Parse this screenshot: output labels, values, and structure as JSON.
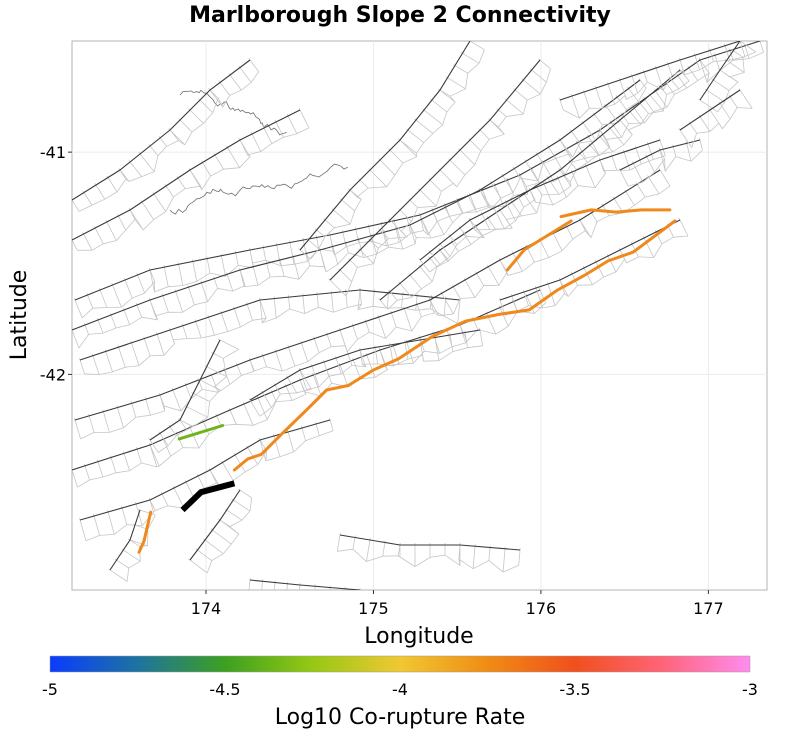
{
  "chart_data": {
    "type": "map",
    "title": "Marlborough Slope 2 Connectivity",
    "xlabel": "Longitude",
    "ylabel": "Latitude",
    "xlim": [
      173.2,
      177.35
    ],
    "ylim": [
      -42.97,
      -40.5
    ],
    "x_ticks": [
      174,
      175,
      176,
      177
    ],
    "y_ticks": [
      -41,
      -42
    ],
    "x_tick_labels": [
      "174",
      "175",
      "176",
      "177"
    ],
    "y_tick_labels": [
      "-41",
      "-42"
    ],
    "grid": true,
    "colorbar": {
      "label": "Log10 Co-rupture Rate",
      "range": [
        -5,
        -3
      ],
      "ticks": [
        -5,
        -4.5,
        -4,
        -3.5,
        -3
      ],
      "tick_labels": [
        "-5",
        "-4.5",
        "-4",
        "-3.5",
        "-3"
      ],
      "colors": [
        "#0a3cff",
        "#1e73a0",
        "#3ca020",
        "#96c814",
        "#f0c832",
        "#f08c14",
        "#f0501e",
        "#ff6478",
        "#ff8cf0"
      ]
    },
    "source_fault": {
      "name": "Marlborough Slope 2",
      "color": "#000000",
      "points": [
        [
          173.86,
          -42.61
        ],
        [
          173.97,
          -42.53
        ],
        [
          174.17,
          -42.49
        ]
      ]
    },
    "highlighted_faults": [
      {
        "log10_rate": -4.4,
        "color": "#6fb41e",
        "points": [
          [
            173.84,
            -42.29
          ],
          [
            174.1,
            -42.23
          ]
        ]
      },
      {
        "log10_rate": -3.75,
        "color": "#f0891c",
        "points": [
          [
            174.17,
            -42.43
          ],
          [
            174.25,
            -42.38
          ],
          [
            174.33,
            -42.36
          ],
          [
            174.45,
            -42.27
          ],
          [
            174.6,
            -42.16
          ],
          [
            174.72,
            -42.07
          ],
          [
            174.85,
            -42.05
          ],
          [
            175.0,
            -41.98
          ],
          [
            175.15,
            -41.93
          ],
          [
            175.35,
            -41.83
          ],
          [
            175.55,
            -41.76
          ],
          [
            175.75,
            -41.73
          ],
          [
            175.93,
            -41.71
          ],
          [
            176.1,
            -41.62
          ],
          [
            176.27,
            -41.55
          ],
          [
            176.4,
            -41.49
          ],
          [
            176.55,
            -41.45
          ],
          [
            176.8,
            -41.31
          ]
        ]
      },
      {
        "log10_rate": -3.75,
        "color": "#f0891c",
        "points": [
          [
            175.8,
            -41.53
          ],
          [
            175.9,
            -41.44
          ],
          [
            176.05,
            -41.37
          ],
          [
            176.18,
            -41.31
          ]
        ]
      },
      {
        "log10_rate": -3.75,
        "color": "#f0891c",
        "points": [
          [
            176.12,
            -41.29
          ],
          [
            176.3,
            -41.26
          ],
          [
            176.45,
            -41.27
          ],
          [
            176.6,
            -41.26
          ],
          [
            176.77,
            -41.26
          ]
        ]
      },
      {
        "log10_rate": -3.7,
        "color": "#f0891c",
        "points": [
          [
            173.6,
            -42.8
          ],
          [
            173.63,
            -42.75
          ],
          [
            173.67,
            -42.62
          ]
        ]
      }
    ]
  }
}
